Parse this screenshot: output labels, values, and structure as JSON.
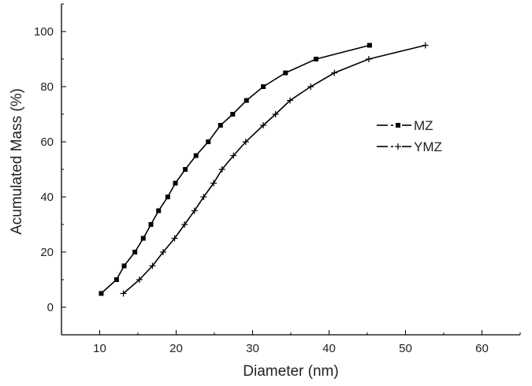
{
  "chart_data": {
    "type": "line",
    "title": "",
    "xlabel": "Diameter (nm)",
    "ylabel": "Acumulated Mass (%)",
    "xlim": [
      5,
      65
    ],
    "ylim": [
      -10,
      110
    ],
    "xticks": [
      10,
      20,
      30,
      40,
      50,
      60
    ],
    "yticks": [
      0,
      20,
      40,
      60,
      80,
      100
    ],
    "grid": false,
    "legend_position": "right",
    "series": [
      {
        "name": "MZ",
        "marker": "square",
        "line_style": "dash-dot",
        "color": "#000000",
        "x": [
          10.2,
          12.2,
          13.2,
          14.6,
          15.7,
          16.7,
          17.7,
          18.9,
          19.9,
          21.2,
          22.6,
          24.2,
          25.8,
          27.4,
          29.2,
          31.4,
          34.3,
          38.3,
          45.3
        ],
        "y": [
          5,
          10,
          15,
          20,
          25,
          30,
          35,
          40,
          45,
          50,
          55,
          60,
          66,
          70,
          75,
          80,
          85,
          90,
          95
        ]
      },
      {
        "name": "YMZ",
        "marker": "plus",
        "line_style": "dash-dot",
        "color": "#000000",
        "x": [
          13.1,
          15.2,
          16.9,
          18.3,
          19.8,
          21.1,
          22.4,
          23.6,
          24.9,
          26.0,
          27.5,
          29.1,
          31.4,
          33.0,
          34.9,
          37.6,
          40.7,
          45.2,
          52.6
        ],
        "y": [
          5,
          10,
          15,
          20,
          25,
          30,
          35,
          40,
          45,
          50,
          55,
          60,
          66,
          70,
          75,
          80,
          85,
          90,
          95
        ]
      }
    ]
  }
}
